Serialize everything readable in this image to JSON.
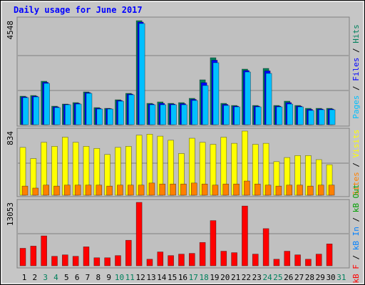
{
  "chart_data": [
    {
      "type": "bar",
      "title": "Daily usage for June 2017",
      "ylim": [
        0,
        4548
      ],
      "yticks": [
        4548
      ],
      "series": [
        {
          "name": "Pages",
          "color": "#00c0ff",
          "values": [
            1184,
            1215,
            1807,
            748,
            872,
            903,
            1371,
            685,
            685,
            1028,
            1308,
            4423,
            872,
            872,
            872,
            872,
            1059,
            1713,
            2710,
            841,
            779,
            2305,
            779,
            2243,
            779,
            903,
            779,
            623,
            654,
            654,
            null
          ]
        },
        {
          "name": "Files",
          "color": "#0000ff",
          "values": [
            1215,
            1246,
            1853,
            779,
            887,
            934,
            1402,
            716,
            700,
            1059,
            1340,
            4486,
            903,
            934,
            903,
            919,
            1106,
            1838,
            2819,
            887,
            810,
            2368,
            810,
            2352,
            810,
            966,
            810,
            670,
            685,
            685,
            null
          ]
        },
        {
          "name": "Hits",
          "color": "#00805c",
          "values": [
            1246,
            1277,
            1900,
            810,
            903,
            966,
            1433,
            748,
            716,
            1090,
            1371,
            4548,
            934,
            997,
            934,
            966,
            1153,
            1962,
            2928,
            934,
            841,
            2430,
            841,
            2461,
            841,
            1028,
            841,
            716,
            716,
            716,
            null
          ]
        }
      ]
    },
    {
      "type": "bar",
      "ylim": [
        0,
        834
      ],
      "yticks": [
        834
      ],
      "series": [
        {
          "name": "Sites",
          "color": "#ff8000",
          "values": [
            119,
            93,
            132,
            119,
            132,
            132,
            132,
            132,
            119,
            132,
            132,
            132,
            159,
            146,
            146,
            146,
            159,
            146,
            132,
            146,
            146,
            185,
            146,
            132,
            119,
            132,
            132,
            119,
            132,
            132,
            null
          ]
        },
        {
          "name": "Visits",
          "color": "#ffff00",
          "values": [
            622,
            477,
            688,
            636,
            755,
            688,
            636,
            609,
            530,
            622,
            636,
            781,
            794,
            768,
            715,
            543,
            741,
            688,
            662,
            755,
            675,
            834,
            662,
            675,
            437,
            490,
            516,
            516,
            463,
            397,
            null
          ]
        }
      ]
    },
    {
      "type": "bar",
      "ylim": [
        0,
        13053
      ],
      "yticks": [
        13053
      ],
      "series": [
        {
          "name": "kB F",
          "color": "#ff0000",
          "values": [
            3600,
            4050,
            6150,
            1950,
            2250,
            1950,
            3900,
            1650,
            1650,
            2100,
            5250,
            13053,
            1350,
            2850,
            2100,
            2400,
            2550,
            4800,
            9300,
            3000,
            2700,
            12300,
            2400,
            7650,
            1350,
            3000,
            2250,
            1350,
            2400,
            4500,
            null
          ]
        }
      ],
      "other_legend": [
        {
          "name": "kB In",
          "color": "#0080ff"
        },
        {
          "name": "kB Out",
          "color": "#00a000"
        }
      ],
      "categories": [
        "1",
        "2",
        "3",
        "4",
        "5",
        "6",
        "7",
        "8",
        "9",
        "10",
        "11",
        "12",
        "13",
        "14",
        "15",
        "16",
        "17",
        "18",
        "19",
        "20",
        "21",
        "22",
        "23",
        "24",
        "25",
        "26",
        "27",
        "28",
        "29",
        "30",
        "31"
      ],
      "category_colors": [
        "#000000",
        "#000000",
        "#00805c",
        "#00805c",
        "#000000",
        "#000000",
        "#000000",
        "#000000",
        "#000000",
        "#00805c",
        "#00805c",
        "#000000",
        "#000000",
        "#000000",
        "#000000",
        "#000000",
        "#00805c",
        "#00805c",
        "#000000",
        "#000000",
        "#000000",
        "#000000",
        "#000000",
        "#00805c",
        "#00805c",
        "#000000",
        "#000000",
        "#000000",
        "#000000",
        "#000000",
        "#00805c"
      ]
    }
  ]
}
